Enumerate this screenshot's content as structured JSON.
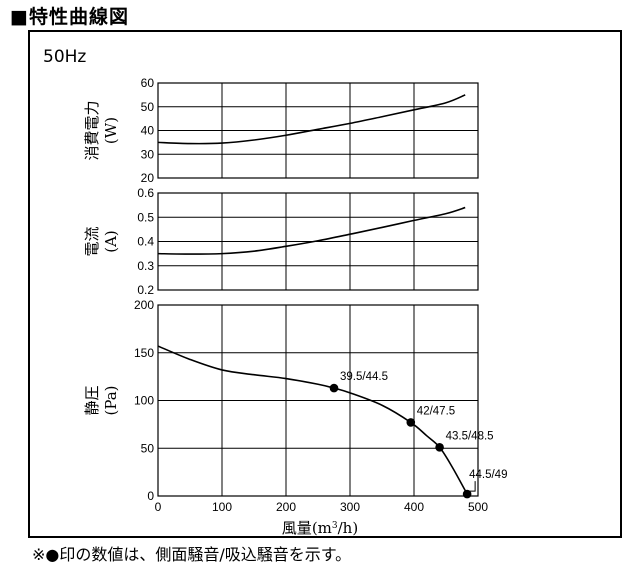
{
  "header": {
    "title": "■特性曲線図"
  },
  "freq_label": "50Hz",
  "footnote": "※●印の数値は、側面騒音/吸込騒音を示す。",
  "chart_data": {
    "type": "line",
    "x_axis": {
      "label_main": "風量",
      "label_unit_pre": "(m",
      "label_sup": "3",
      "label_unit_post": "/h)",
      "range": [
        0,
        500
      ],
      "ticks": [
        "0",
        "100",
        "200",
        "300",
        "400",
        "500"
      ],
      "grid": true
    },
    "panels": [
      {
        "id": "power",
        "ylabel_main": "消費電力",
        "ylabel_unit": "(W)",
        "ylim": [
          20,
          60
        ],
        "yticks": [
          "20",
          "30",
          "40",
          "50",
          "60"
        ],
        "series": [
          {
            "x": [
              0,
              50,
              100,
              150,
              200,
              250,
              300,
              350,
              400,
              450,
              480
            ],
            "y": [
              35,
              34.5,
              34.7,
              36,
              38,
              40.5,
              43,
              45.8,
              48.7,
              51.7,
              55
            ]
          }
        ]
      },
      {
        "id": "current",
        "ylabel_main": "電流",
        "ylabel_unit": "(A)",
        "ylim": [
          0.2,
          0.6
        ],
        "yticks": [
          "0.2",
          "0.3",
          "0.4",
          "0.5",
          "0.6"
        ],
        "series": [
          {
            "x": [
              0,
              50,
              100,
              150,
              200,
              250,
              300,
              350,
              400,
              450,
              480
            ],
            "y": [
              0.35,
              0.348,
              0.35,
              0.36,
              0.38,
              0.403,
              0.43,
              0.458,
              0.487,
              0.515,
              0.54
            ]
          }
        ]
      },
      {
        "id": "static_pressure",
        "ylabel_main": "静圧",
        "ylabel_unit": "(Pa)",
        "ylim": [
          0,
          200
        ],
        "yticks": [
          "0",
          "50",
          "100",
          "150",
          "200"
        ],
        "series": [
          {
            "x": [
              0,
              50,
              100,
              150,
              200,
              250,
              275,
              300,
              350,
              395,
              420,
              440,
              460,
              483
            ],
            "y": [
              157,
              143,
              132,
              127,
              123,
              117,
              113,
              108,
              95,
              77,
              63,
              51,
              30,
              2
            ]
          }
        ],
        "markers": [
          {
            "x": 275,
            "y": 113,
            "label": "39.5/44.5"
          },
          {
            "x": 395,
            "y": 77,
            "label": "42/47.5"
          },
          {
            "x": 440,
            "y": 51,
            "label": "43.5/48.5"
          },
          {
            "x": 483,
            "y": 2,
            "label": "44.5/49"
          }
        ]
      }
    ]
  }
}
